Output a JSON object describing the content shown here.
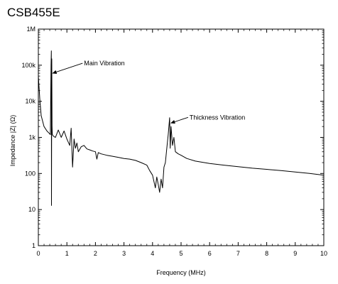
{
  "chart_data": {
    "type": "line",
    "title": "CSB455E",
    "xlabel": "Frequency (MHz)",
    "ylabel": "Impedance |Z| (Ω)",
    "xlim": [
      0,
      10
    ],
    "ylim": [
      1,
      1000000
    ],
    "yscale": "log",
    "grid": false,
    "x_ticks": [
      0,
      1,
      2,
      3,
      4,
      5,
      6,
      7,
      8,
      9,
      10
    ],
    "x_tick_labels": [
      "0",
      "1",
      "2",
      "3",
      "4",
      "5",
      "6",
      "7",
      "8",
      "9",
      "10"
    ],
    "y_ticks": [
      1,
      10,
      100,
      1000,
      10000,
      100000,
      1000000
    ],
    "y_tick_labels": [
      "1",
      "10",
      "100",
      "1k",
      "10k",
      "100k",
      "1M"
    ],
    "series": [
      {
        "name": "",
        "x": [
          0,
          0.05,
          0.1,
          0.2,
          0.3,
          0.38,
          0.42,
          0.445,
          0.455,
          0.46,
          0.47,
          0.48,
          0.49,
          0.52,
          0.55,
          0.6,
          0.7,
          0.8,
          0.9,
          1.0,
          1.1,
          1.15,
          1.2,
          1.25,
          1.3,
          1.35,
          1.4,
          1.5,
          1.6,
          1.7,
          1.8,
          1.9,
          2.0,
          2.05,
          2.1,
          2.2,
          2.4,
          2.6,
          2.8,
          3.0,
          3.2,
          3.4,
          3.6,
          3.8,
          3.9,
          4.0,
          4.05,
          4.1,
          4.15,
          4.2,
          4.25,
          4.3,
          4.35,
          4.4,
          4.45,
          4.5,
          4.55,
          4.6,
          4.62,
          4.65,
          4.7,
          4.75,
          4.8,
          4.9,
          5.0,
          5.2,
          5.5,
          6.0,
          6.5,
          7.0,
          7.5,
          8.0,
          8.5,
          9.0,
          9.5,
          10.0
        ],
        "y": [
          50000,
          12000,
          4000,
          2000,
          1500,
          1300,
          1200,
          100000,
          250000,
          13,
          150000,
          2000,
          1200,
          1100,
          1050,
          1000,
          1600,
          1000,
          1500,
          900,
          600,
          1800,
          150,
          900,
          500,
          700,
          400,
          550,
          600,
          480,
          450,
          420,
          400,
          250,
          380,
          350,
          320,
          300,
          280,
          260,
          250,
          230,
          200,
          170,
          120,
          90,
          60,
          40,
          80,
          50,
          30,
          70,
          40,
          150,
          200,
          500,
          1200,
          3500,
          500,
          2000,
          600,
          1000,
          400,
          350,
          320,
          260,
          220,
          190,
          170,
          155,
          140,
          130,
          120,
          110,
          100,
          90
        ]
      }
    ],
    "annotations": [
      {
        "text": "Main Vibration",
        "x": 0.455,
        "y": 60000
      },
      {
        "text": "Thickness Vibration",
        "x": 4.6,
        "y": 2500
      }
    ]
  }
}
